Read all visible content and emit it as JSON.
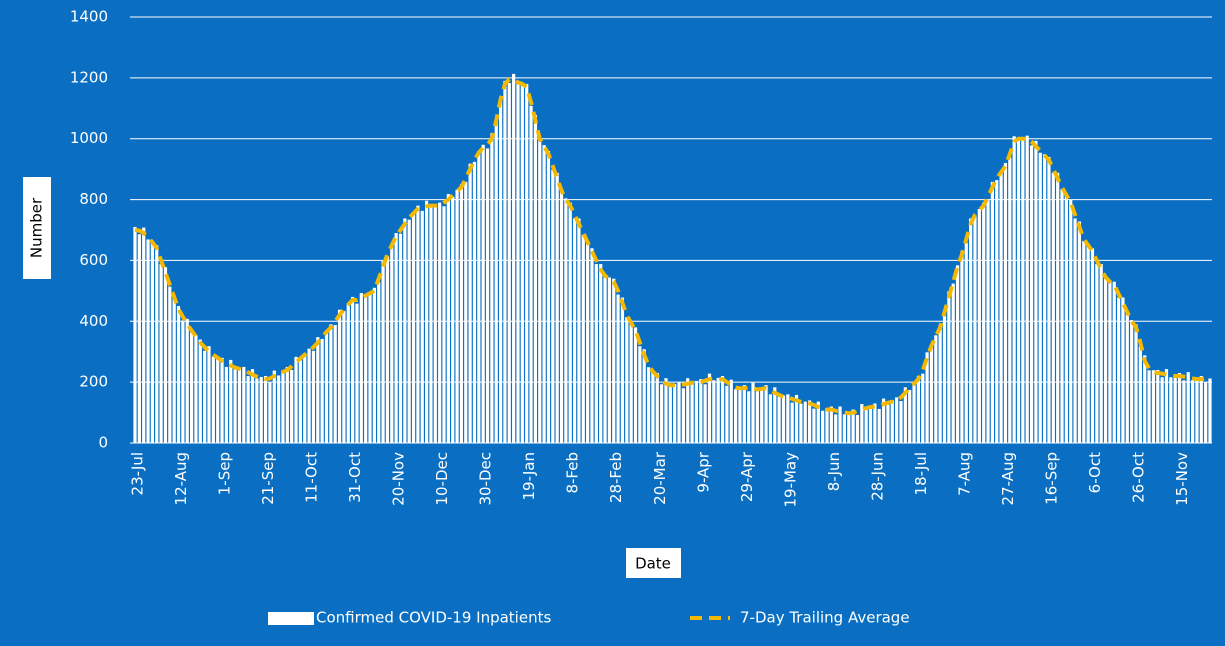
{
  "chart_data": {
    "type": "bar",
    "x_label": "Date",
    "y_label": "Number",
    "ylim": [
      0,
      1400
    ],
    "yticks": [
      0,
      200,
      400,
      600,
      800,
      1000,
      1200,
      1400
    ],
    "grid": true,
    "categories": [
      "23-Jul",
      null,
      null,
      null,
      null,
      null,
      null,
      null,
      null,
      null,
      "12-Aug",
      null,
      null,
      null,
      null,
      null,
      null,
      null,
      null,
      null,
      "1-Sep",
      null,
      null,
      null,
      null,
      null,
      null,
      null,
      null,
      null,
      "21-Sep",
      null,
      null,
      null,
      null,
      null,
      null,
      null,
      null,
      null,
      "11-Oct",
      null,
      null,
      null,
      null,
      null,
      null,
      null,
      null,
      null,
      "31-Oct",
      null,
      null,
      null,
      null,
      null,
      null,
      null,
      null,
      null,
      "20-Nov",
      null,
      null,
      null,
      null,
      null,
      null,
      null,
      null,
      null,
      "10-Dec",
      null,
      null,
      null,
      null,
      null,
      null,
      null,
      null,
      null,
      "30-Dec",
      null,
      null,
      null,
      null,
      null,
      null,
      null,
      null,
      null,
      "19-Jan",
      null,
      null,
      null,
      null,
      null,
      null,
      null,
      null,
      null,
      "8-Feb",
      null,
      null,
      null,
      null,
      null,
      null,
      null,
      null,
      null,
      "28-Feb",
      null,
      null,
      null,
      null,
      null,
      null,
      null,
      null,
      null,
      "20-Mar",
      null,
      null,
      null,
      null,
      null,
      null,
      null,
      null,
      null,
      "9-Apr",
      null,
      null,
      null,
      null,
      null,
      null,
      null,
      null,
      null,
      "29-Apr",
      null,
      null,
      null,
      null,
      null,
      null,
      null,
      null,
      null,
      "19-May",
      null,
      null,
      null,
      null,
      null,
      null,
      null,
      null,
      null,
      "8-Jun",
      null,
      null,
      null,
      null,
      null,
      null,
      null,
      null,
      null,
      "28-Jun",
      null,
      null,
      null,
      null,
      null,
      null,
      null,
      null,
      null,
      "18-Jul",
      null,
      null,
      null,
      null,
      null,
      null,
      null,
      null,
      null,
      "7-Aug",
      null,
      null,
      null,
      null,
      null,
      null,
      null,
      null,
      null,
      "27-Aug",
      null,
      null,
      null,
      null,
      null,
      null,
      null,
      null,
      null,
      "16-Sep",
      null,
      null,
      null,
      null,
      null,
      null,
      null,
      null,
      null,
      "6-Oct",
      null,
      null,
      null,
      null,
      null,
      null,
      null,
      null,
      null,
      "26-Oct",
      null,
      null,
      null,
      null,
      null,
      null,
      null,
      null,
      null,
      "15-Nov",
      null,
      null,
      null,
      null,
      null,
      null,
      null
    ],
    "series": [
      {
        "name": "Confirmed COVID-19 Inpatients",
        "type": "bar",
        "color": "#ffffff",
        "values": [
          710,
          686,
          708,
          669,
          664,
          650,
          588,
          578,
          514,
          484,
          450,
          403,
          408,
          364,
          354,
          340,
          303,
          318,
          284,
          284,
          280,
          250,
          273,
          242,
          248,
          250,
          220,
          243,
          212,
          217,
          220,
          200,
          238,
          222,
          238,
          250,
          240,
          283,
          272,
          294,
          310,
          303,
          348,
          342,
          369,
          390,
          388,
          438,
          434,
          459,
          480,
          458,
          493,
          479,
          496,
          510,
          528,
          598,
          614,
          654,
          690,
          688,
          738,
          734,
          759,
          780,
          763,
          796,
          774,
          784,
          790,
          778,
          818,
          809,
          832,
          850,
          858,
          918,
          924,
          959,
          980,
          968,
          1018,
          1054,
          1134,
          1190,
          1183,
          1213,
          1179,
          1184,
          1180,
          1108,
          1078,
          994,
          979,
          960,
          898,
          888,
          824,
          804,
          790,
          738,
          738,
          684,
          664,
          640,
          588,
          588,
          544,
          544,
          540,
          488,
          478,
          414,
          399,
          380,
          318,
          308,
          249,
          239,
          230,
          193,
          213,
          184,
          194,
          200,
          180,
          213,
          192,
          204,
          210,
          193,
          228,
          206,
          214,
          220,
          188,
          208,
          176,
          184,
          190,
          170,
          198,
          170,
          182,
          190,
          160,
          183,
          152,
          156,
          160,
          133,
          158,
          129,
          136,
          140,
          113,
          136,
          106,
          114,
          120,
          94,
          120,
          94,
          102,
          110,
          92,
          128,
          109,
          122,
          130,
          112,
          146,
          126,
          140,
          150,
          138,
          183,
          174,
          199,
          220,
          228,
          298,
          314,
          354,
          390,
          418,
          498,
          524,
          584,
          630,
          658,
          738,
          744,
          769,
          790,
          798,
          858,
          864,
          894,
          920,
          938,
          1008,
          994,
          1004,
          1010,
          978,
          993,
          954,
          949,
          940,
          888,
          888,
          834,
          819,
          800,
          738,
          728,
          664,
          654,
          640,
          588,
          588,
          539,
          534,
          530,
          478,
          478,
          424,
          404,
          390,
          318,
          288,
          239,
          239,
          240,
          216,
          243,
          216,
          224,
          230,
          206,
          233,
          206,
          214,
          220,
          200,
          212
        ]
      },
      {
        "name": "7-Day Trailing Average",
        "type": "line",
        "color": "#f5b800",
        "values": [
          700,
          698,
          690,
          675,
          660,
          640,
          600,
          560,
          520,
          480,
          440,
          415,
          390,
          370,
          350,
          330,
          315,
          300,
          290,
          280,
          270,
          262,
          255,
          248,
          244,
          240,
          232,
          225,
          218,
          213,
          210,
          212,
          220,
          228,
          234,
          240,
          252,
          265,
          278,
          290,
          300,
          315,
          330,
          348,
          365,
          380,
          400,
          420,
          440,
          455,
          470,
          470,
          475,
          485,
          492,
          500,
          540,
          580,
          620,
          650,
          680,
          700,
          720,
          740,
          755,
          770,
          775,
          778,
          780,
          780,
          780,
          790,
          800,
          815,
          828,
          840,
          870,
          900,
          930,
          955,
          970,
          980,
          1000,
          1060,
          1130,
          1180,
          1195,
          1195,
          1185,
          1180,
          1170,
          1120,
          1060,
          1000,
          975,
          950,
          910,
          870,
          830,
          800,
          780,
          750,
          720,
          690,
          660,
          630,
          600,
          570,
          550,
          540,
          530,
          500,
          460,
          420,
          395,
          370,
          330,
          290,
          255,
          235,
          220,
          205,
          195,
          190,
          190,
          190,
          192,
          195,
          198,
          200,
          200,
          205,
          210,
          212,
          210,
          210,
          200,
          190,
          182,
          180,
          180,
          182,
          180,
          176,
          178,
          180,
          172,
          165,
          158,
          152,
          150,
          145,
          140,
          135,
          132,
          130,
          125,
          118,
          112,
          110,
          110,
          106,
          102,
          100,
          98,
          100,
          104,
          110,
          115,
          118,
          120,
          124,
          128,
          132,
          136,
          140,
          150,
          165,
          180,
          195,
          210,
          240,
          280,
          320,
          350,
          380,
          430,
          480,
          530,
          580,
          620,
          670,
          720,
          750,
          765,
          780,
          810,
          840,
          870,
          890,
          910,
          950,
          990,
          1000,
          1000,
          1000,
          990,
          975,
          960,
          945,
          930,
          900,
          870,
          840,
          815,
          790,
          750,
          710,
          670,
          650,
          630,
          600,
          570,
          545,
          530,
          520,
          490,
          460,
          430,
          400,
          380,
          330,
          270,
          245,
          235,
          230,
          228,
          225,
          222,
          220,
          220,
          218,
          215,
          212,
          210,
          210,
          212,
          208
        ]
      }
    ]
  }
}
